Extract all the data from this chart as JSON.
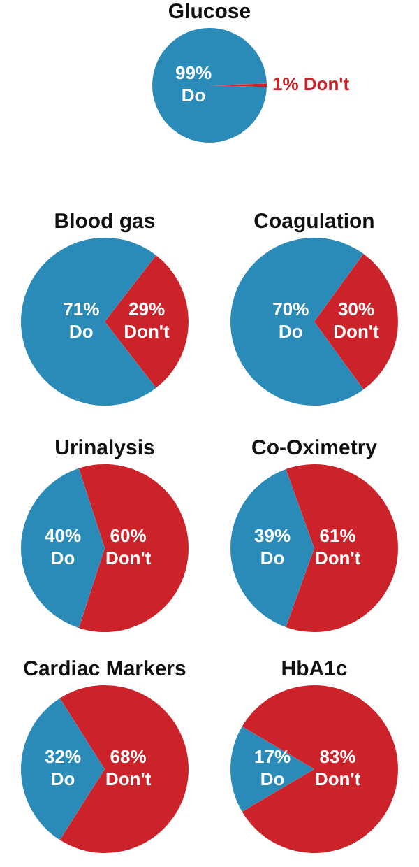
{
  "chart_data": [
    {
      "type": "pie",
      "title": "Glucose",
      "categories": [
        "Do",
        "Don't"
      ],
      "values": [
        99,
        1
      ],
      "colors": [
        "#2a8ab8",
        "#cc2229"
      ],
      "value_labels": [
        "99%",
        "1%"
      ]
    },
    {
      "type": "pie",
      "title": "Blood gas",
      "categories": [
        "Do",
        "Don't"
      ],
      "values": [
        71,
        29
      ],
      "colors": [
        "#2a8ab8",
        "#cc2229"
      ],
      "value_labels": [
        "71%",
        "29%"
      ]
    },
    {
      "type": "pie",
      "title": "Coagulation",
      "categories": [
        "Do",
        "Don't"
      ],
      "values": [
        70,
        30
      ],
      "colors": [
        "#2a8ab8",
        "#cc2229"
      ],
      "value_labels": [
        "70%",
        "30%"
      ]
    },
    {
      "type": "pie",
      "title": "Urinalysis",
      "categories": [
        "Do",
        "Don't"
      ],
      "values": [
        40,
        60
      ],
      "colors": [
        "#2a8ab8",
        "#cc2229"
      ],
      "value_labels": [
        "40%",
        "60%"
      ]
    },
    {
      "type": "pie",
      "title": "Co-Oximetry",
      "categories": [
        "Do",
        "Don't"
      ],
      "values": [
        39,
        61
      ],
      "colors": [
        "#2a8ab8",
        "#cc2229"
      ],
      "value_labels": [
        "39%",
        "61%"
      ]
    },
    {
      "type": "pie",
      "title": "Cardiac Markers",
      "categories": [
        "Do",
        "Don't"
      ],
      "values": [
        32,
        68
      ],
      "colors": [
        "#2a8ab8",
        "#cc2229"
      ],
      "value_labels": [
        "32%",
        "68%"
      ]
    },
    {
      "type": "pie",
      "title": "HbA1c",
      "categories": [
        "Do",
        "Don't"
      ],
      "values": [
        17,
        83
      ],
      "colors": [
        "#2a8ab8",
        "#cc2229"
      ],
      "value_labels": [
        "17%",
        "83%"
      ]
    }
  ]
}
